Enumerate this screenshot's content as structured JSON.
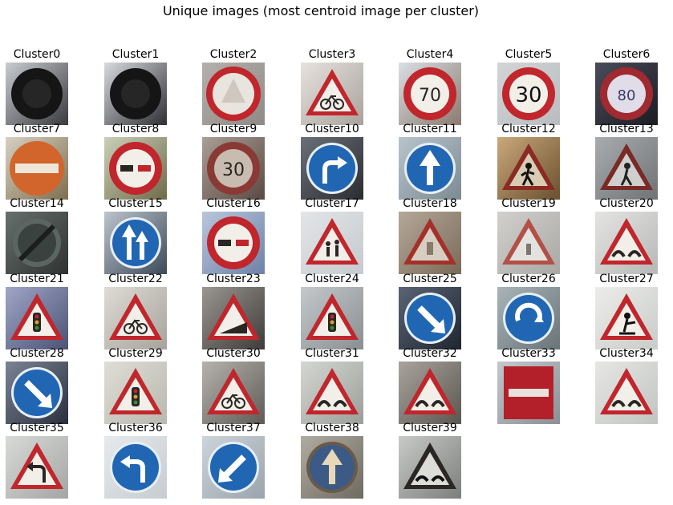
{
  "title": "Unique images (most centroid image per cluster)",
  "clusters": [
    {
      "label": "Cluster0",
      "sign": "dark-round",
      "bg": "#3a3a3e",
      "light": "#c8ccd0"
    },
    {
      "label": "Cluster1",
      "sign": "dark-round",
      "bg": "#2e3034",
      "light": "#d8dade"
    },
    {
      "label": "Cluster2",
      "sign": "prohibit-plain",
      "bg": "#8f8a86",
      "light": "#b4b0ac"
    },
    {
      "label": "Cluster3",
      "sign": "warn-bicycle",
      "bg": "#a9a29c",
      "light": "#e6e2de"
    },
    {
      "label": "Cluster4",
      "sign": "speed-70",
      "bg": "#8a7a6e",
      "light": "#d9dfe4"
    },
    {
      "label": "Cluster5",
      "sign": "speed-30",
      "bg": "#b9bcc0",
      "light": "#d2d4d6"
    },
    {
      "label": "Cluster6",
      "sign": "speed-dark",
      "bg": "#1c1c24",
      "light": "#4a4c5a"
    },
    {
      "label": "Cluster7",
      "sign": "no-entry-orange",
      "bg": "#7d6f50",
      "light": "#d7d0c2"
    },
    {
      "label": "Cluster8",
      "sign": "no-overtake",
      "bg": "#6f6b4a",
      "light": "#c9d0b8"
    },
    {
      "label": "Cluster9",
      "sign": "speed-30-dim",
      "bg": "#5b4a44",
      "light": "#a89f96"
    },
    {
      "label": "Cluster10",
      "sign": "blue-turn-right",
      "bg": "#2a2c30",
      "light": "#6b7078"
    },
    {
      "label": "Cluster11",
      "sign": "blue-up",
      "bg": "#7c8a92",
      "light": "#b8c4cc"
    },
    {
      "label": "Cluster12",
      "sign": "warn-ped-dark",
      "bg": "#6a5030",
      "light": "#c9a87a"
    },
    {
      "label": "Cluster13",
      "sign": "warn-ped-grey",
      "bg": "#6f7375",
      "light": "#a9acae"
    },
    {
      "label": "Cluster14",
      "sign": "end-limit",
      "bg": "#2f3230",
      "light": "#66706c"
    },
    {
      "label": "Cluster15",
      "sign": "blue-lanes",
      "bg": "#3c4a58",
      "light": "#bcc4cc"
    },
    {
      "label": "Cluster16",
      "sign": "no-overtake",
      "bg": "#6e82a8",
      "light": "#b9c6dc"
    },
    {
      "label": "Cluster17",
      "sign": "warn-children",
      "bg": "#c5cace",
      "light": "#e3e5e7"
    },
    {
      "label": "Cluster18",
      "sign": "warn-generic",
      "bg": "#7a6a58",
      "light": "#b4a898"
    },
    {
      "label": "Cluster19",
      "sign": "warn-faint",
      "bg": "#a9a8a4",
      "light": "#d1d0cc"
    },
    {
      "label": "Cluster20",
      "sign": "warn-bumps",
      "bg": "#b7b8b6",
      "light": "#e4e4e2"
    },
    {
      "label": "Cluster21",
      "sign": "warn-light",
      "bg": "#4b5274",
      "light": "#9fa6c8"
    },
    {
      "label": "Cluster22",
      "sign": "warn-bicycle",
      "bg": "#a6a39c",
      "light": "#dedbd4"
    },
    {
      "label": "Cluster23",
      "sign": "warn-slope",
      "bg": "#3e3c3a",
      "light": "#9a9690"
    },
    {
      "label": "Cluster24",
      "sign": "warn-light",
      "bg": "#8a8f92",
      "light": "#c4c8cb"
    },
    {
      "label": "Cluster25",
      "sign": "blue-diagonal",
      "bg": "#1f2630",
      "light": "#5a6474"
    },
    {
      "label": "Cluster26",
      "sign": "blue-roundabout",
      "bg": "#6a7478",
      "light": "#a8b4b8"
    },
    {
      "label": "Cluster27",
      "sign": "warn-roadwork",
      "bg": "#c9cbc8",
      "light": "#ecedea"
    },
    {
      "label": "Cluster28",
      "sign": "blue-diagonal",
      "bg": "#2a2f3c",
      "light": "#7a8496"
    },
    {
      "label": "Cluster29",
      "sign": "warn-light",
      "bg": "#b8b8ae",
      "light": "#deded6"
    },
    {
      "label": "Cluster30",
      "sign": "warn-bicycle",
      "bg": "#5e5c58",
      "light": "#b6b2ac"
    },
    {
      "label": "Cluster31",
      "sign": "warn-bumps",
      "bg": "#9c9e9a",
      "light": "#d4d6d2"
    },
    {
      "label": "Cluster32",
      "sign": "warn-bumps",
      "bg": "#5a5650",
      "light": "#a8a49c"
    },
    {
      "label": "Cluster33",
      "sign": "no-entry",
      "bg": "#8a9096",
      "light": "#c2c8cc"
    },
    {
      "label": "Cluster34",
      "sign": "warn-bumps",
      "bg": "#c2c4c2",
      "light": "#e6e7e5"
    },
    {
      "label": "Cluster35",
      "sign": "warn-curve",
      "bg": "#a4a6a4",
      "light": "#d8dad8"
    },
    {
      "label": "Cluster36",
      "sign": "blue-turn-left",
      "bg": "#c6ccd0",
      "light": "#e6eaec"
    },
    {
      "label": "Cluster37",
      "sign": "blue-diagonal-l",
      "bg": "#9aa4ac",
      "light": "#cdd4da"
    },
    {
      "label": "Cluster38",
      "sign": "blue-up-brown",
      "bg": "#6e6a60",
      "light": "#b0aca2"
    },
    {
      "label": "Cluster39",
      "sign": "warn-bumps-dark",
      "bg": "#7c7e7c",
      "light": "#c8cac8"
    }
  ]
}
